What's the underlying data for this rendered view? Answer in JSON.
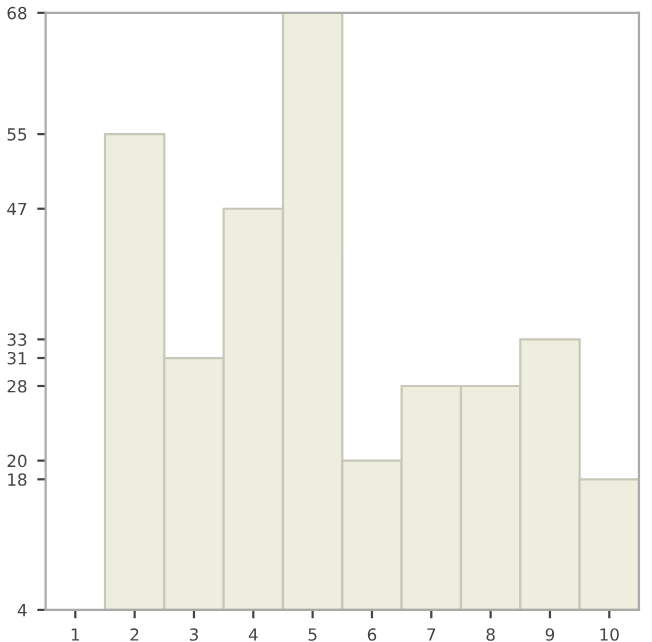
{
  "chart_data": {
    "type": "bar",
    "categories": [
      "1",
      "2",
      "3",
      "4",
      "5",
      "6",
      "7",
      "8",
      "9",
      "10"
    ],
    "values": [
      4,
      55,
      31,
      47,
      68,
      20,
      28,
      28,
      33,
      18
    ],
    "color": "#eeeedf",
    "ylim": [
      4,
      68
    ],
    "yticks": [
      4,
      18,
      20,
      28,
      31,
      33,
      47,
      55,
      68
    ],
    "grid": false
  }
}
